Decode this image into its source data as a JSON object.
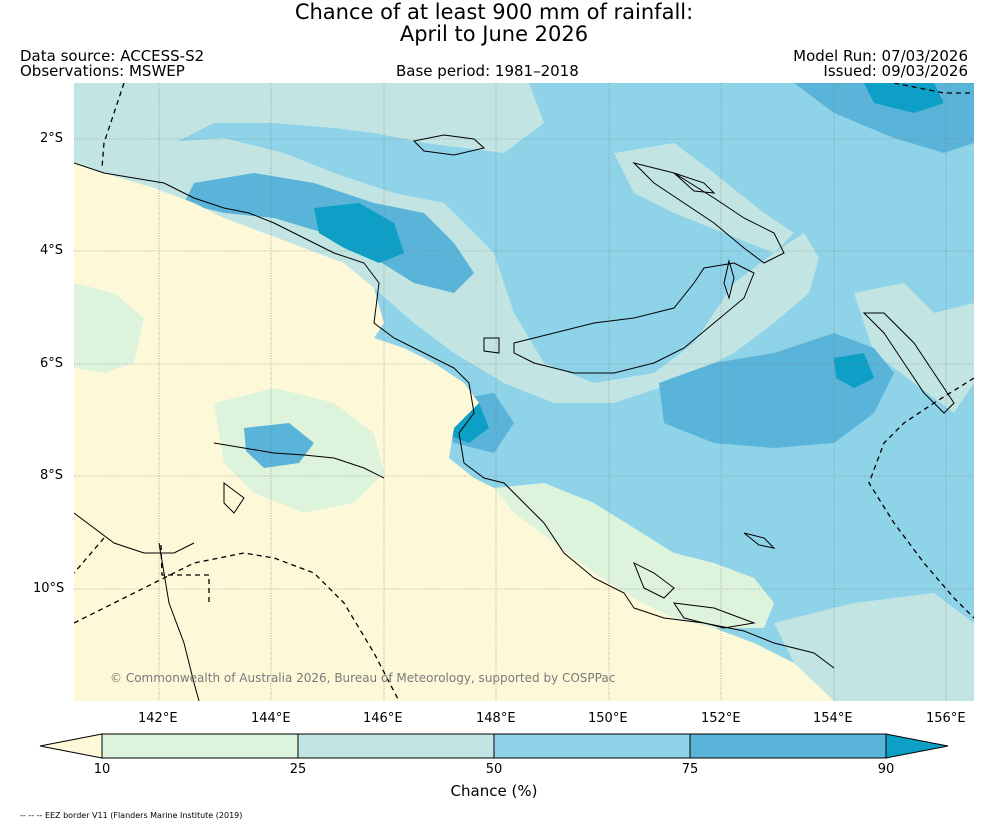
{
  "title": {
    "line1": "Chance of at least 900 mm of rainfall:",
    "line2": "April to June 2026"
  },
  "header": {
    "data_source": "Data source: ACCESS-S2",
    "observations": "Observations: MSWEP",
    "base_period": "Base period: 1981–2018",
    "model_run": "Model Run: 07/03/2026",
    "issued": "Issued: 09/03/2026"
  },
  "map": {
    "lat_labels": [
      "2°S",
      "4°S",
      "6°S",
      "8°S",
      "10°S"
    ],
    "lon_labels": [
      "142°E",
      "144°E",
      "146°E",
      "148°E",
      "150°E",
      "152°E",
      "154°E",
      "156°E"
    ],
    "credit": "© Commonwealth of Australia 2026, Bureau of Meteorology, supported by COSPPac",
    "colors": {
      "below_10": "#fdf9d8",
      "10_25": "#ddf3dc",
      "25_50": "#c2e5e3",
      "50_75": "#8fd3e9",
      "75_90": "#5ab3d8",
      "above_90": "#0e9fc6",
      "coast": "#000000"
    }
  },
  "colorbar": {
    "ticks": [
      "10",
      "25",
      "50",
      "75",
      "90"
    ],
    "title": "Chance (%)",
    "colors": [
      "#fdf9d8",
      "#ddf3dc",
      "#c2e5e3",
      "#8fd3e9",
      "#5ab3d8",
      "#0e9fc6"
    ]
  },
  "footnote": "-- -- -- EEZ border V11 (Flanders Marine Institute (2019)"
}
